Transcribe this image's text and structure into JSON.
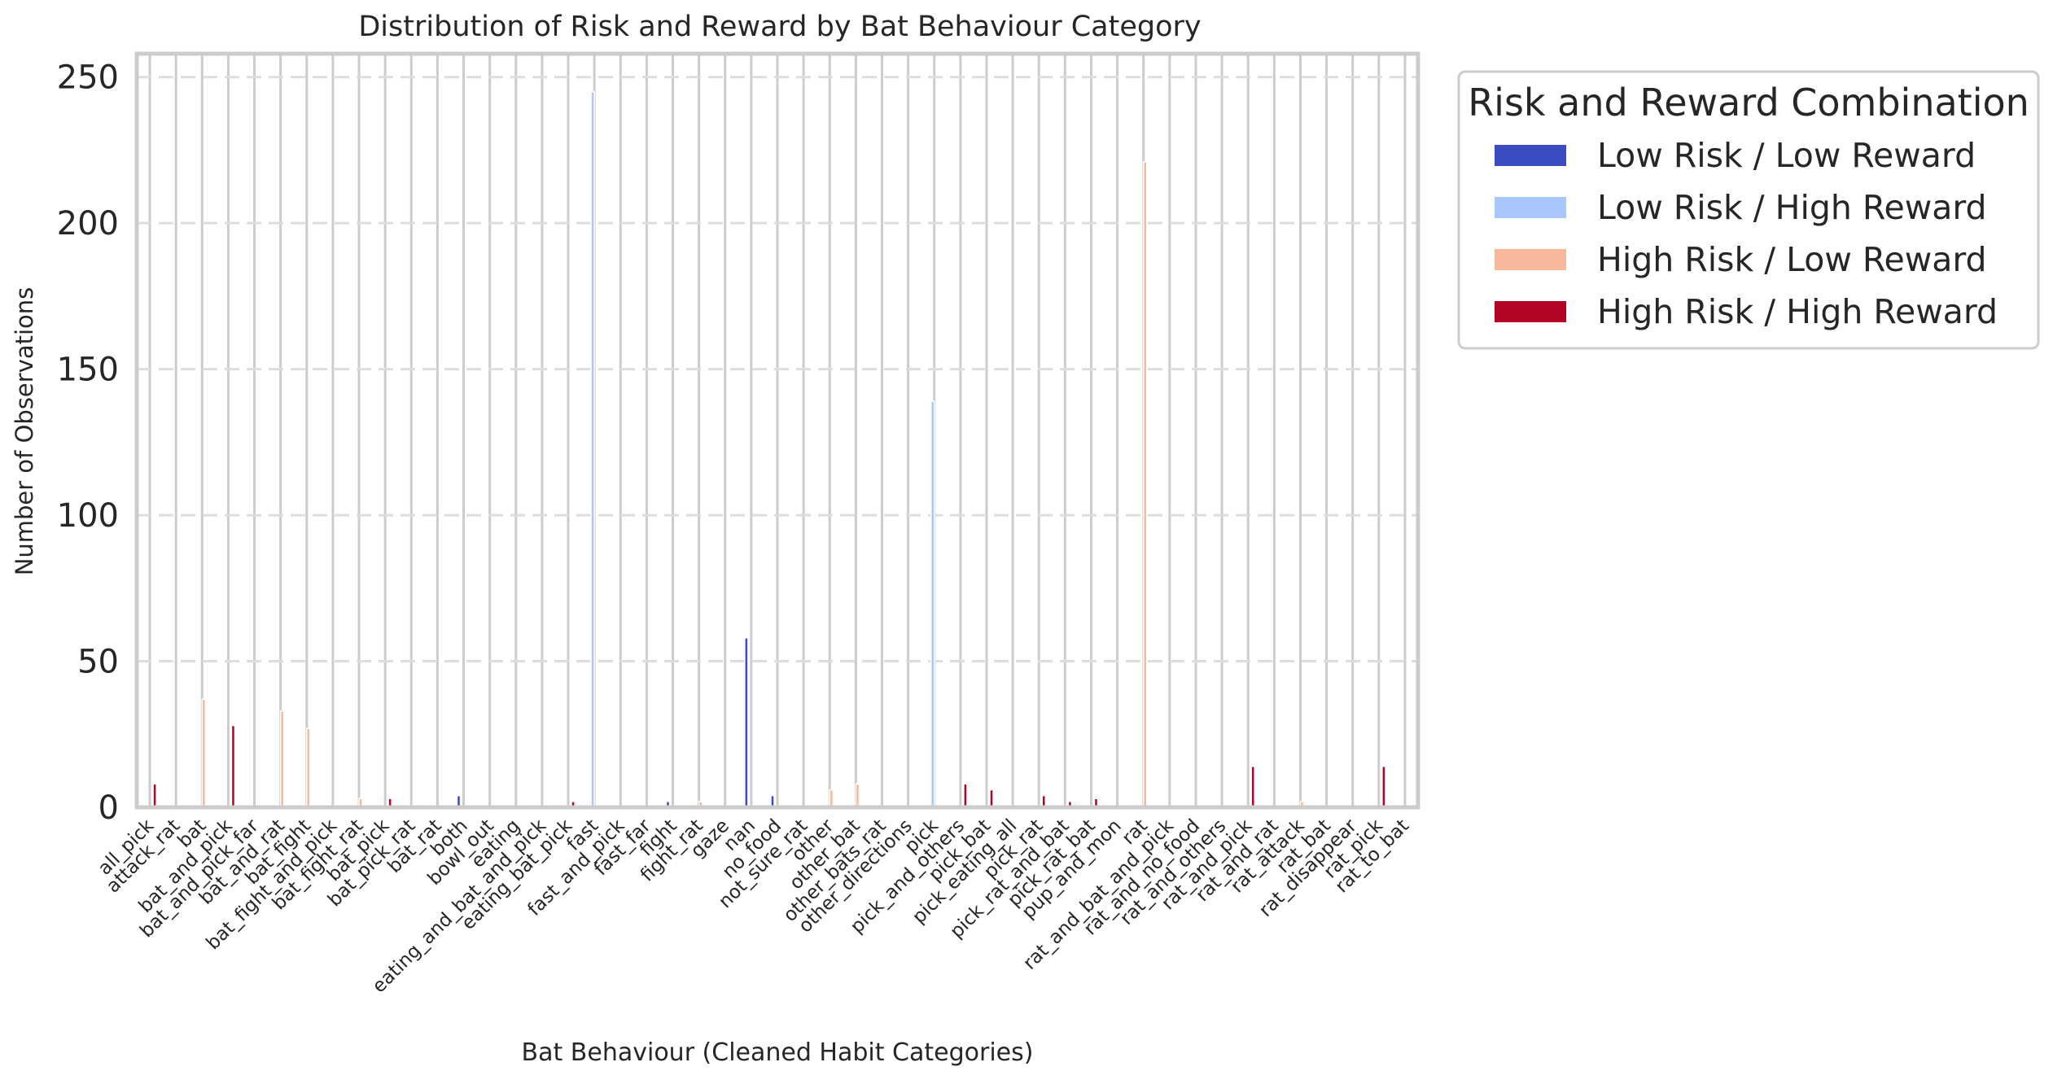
{
  "chart_data": {
    "type": "bar",
    "title": "Distribution of Risk and Reward by Bat Behaviour Category",
    "xlabel": "Bat Behaviour (Cleaned Habit Categories)",
    "ylabel": "Number of Observations",
    "ylim": [
      0,
      258
    ],
    "yticks": [
      0,
      50,
      100,
      150,
      200,
      250
    ],
    "grid": true,
    "legend_title": "Risk and Reward Combination",
    "legend_position": "outside upper right",
    "categories": [
      "all_pick",
      "attack_rat",
      "bat",
      "bat_and_pick",
      "bat_and_pick_far",
      "bat_and_rat",
      "bat_fight",
      "bat_fight_and_pick",
      "bat_fight_rat",
      "bat_pick",
      "bat_pick_rat",
      "bat_rat",
      "both",
      "bowl_out",
      "eating",
      "eating_and_bat_and_pick",
      "eating_bat_pick",
      "fast",
      "fast_and_pick",
      "fast_far",
      "fight",
      "fight_rat",
      "gaze",
      "nan",
      "no_food",
      "not_sure_rat",
      "other",
      "other_bat",
      "other_bats_rat",
      "other_directions",
      "pick",
      "pick_and_others",
      "pick_bat",
      "pick_eating_all",
      "pick_rat",
      "pick_rat_and_bat",
      "pick_rat_bat",
      "pup_and_mon",
      "rat",
      "rat_and_bat_and_pick",
      "rat_and_no_food",
      "rat_and_others",
      "rat_and_pick",
      "rat_and_rat",
      "rat_attack",
      "rat_bat",
      "rat_disappear",
      "rat_pick",
      "rat_to_bat"
    ],
    "series": [
      {
        "name": "Low Risk / Low Reward",
        "color": "#3b4cc0",
        "values": [
          0,
          0,
          0,
          0,
          0,
          0,
          0,
          0,
          0,
          0,
          0,
          0,
          4,
          0,
          0,
          0,
          0,
          0,
          0,
          0,
          2,
          0,
          0,
          58,
          4,
          0,
          0,
          0,
          0,
          0,
          0,
          0,
          0,
          0,
          0,
          0,
          0,
          0,
          0,
          0,
          0,
          0,
          0,
          0,
          0,
          0,
          0,
          0,
          0
        ]
      },
      {
        "name": "Low Risk / High Reward",
        "color": "#aac7fd",
        "values": [
          0,
          0,
          0,
          0,
          0,
          0,
          0,
          0,
          0,
          0,
          0,
          0,
          0,
          0,
          0,
          0,
          0,
          245,
          0,
          0,
          0,
          0,
          0,
          0,
          0,
          0,
          0,
          0,
          0,
          0,
          139,
          0,
          0,
          0,
          0,
          0,
          0,
          0,
          0,
          0,
          0,
          0,
          0,
          0,
          0,
          0,
          0,
          0,
          0
        ]
      },
      {
        "name": "High Risk / Low Reward",
        "color": "#f7b89c",
        "values": [
          0,
          0,
          37,
          0,
          0,
          33,
          27,
          0,
          3,
          0,
          0,
          0,
          0,
          0,
          0,
          0,
          0,
          0,
          0,
          0,
          0,
          2,
          0,
          0,
          0,
          0,
          6,
          8,
          0,
          0,
          0,
          0,
          0,
          0,
          0,
          0,
          0,
          0,
          221,
          0,
          0,
          0,
          0,
          0,
          2,
          0,
          0,
          0,
          0
        ]
      },
      {
        "name": "High Risk / High Reward",
        "color": "#b40426",
        "values": [
          8,
          0,
          0,
          28,
          0,
          0,
          0,
          0,
          0,
          3,
          0,
          0,
          0,
          0,
          0,
          0,
          2,
          0,
          0,
          0,
          0,
          0,
          0,
          0,
          0,
          0,
          0,
          0,
          0,
          0,
          0,
          8,
          6,
          0,
          4,
          2,
          3,
          0,
          0,
          0,
          0,
          0,
          14,
          0,
          0,
          0,
          0,
          14,
          0
        ]
      }
    ]
  }
}
